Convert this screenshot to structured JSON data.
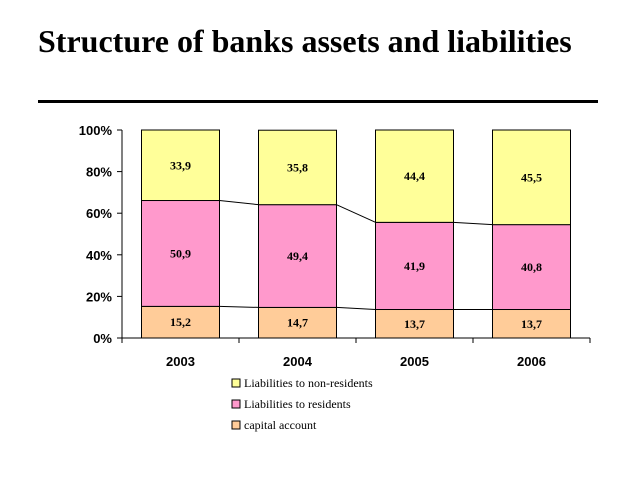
{
  "slide": {
    "title": "Structure of banks assets and liabilities"
  },
  "chart_data": {
    "type": "bar",
    "stacked": true,
    "normalized_100": true,
    "categories": [
      "2003",
      "2004",
      "2005",
      "2006"
    ],
    "series": [
      {
        "name": "capital account",
        "values": [
          15.2,
          14.7,
          13.7,
          13.7
        ],
        "labels": [
          "15,2",
          "14,7",
          "13,7",
          "13,7"
        ],
        "color": "#FFCC99"
      },
      {
        "name": "Liabilities to residents",
        "values": [
          50.9,
          49.4,
          41.9,
          40.8
        ],
        "labels": [
          "50,9",
          "49,4",
          "41,9",
          "40,8"
        ],
        "color": "#FF99CC"
      },
      {
        "name": "Liabilities to non-residents",
        "values": [
          33.9,
          35.8,
          44.4,
          45.5
        ],
        "labels": [
          "33,9",
          "35,8",
          "44,4",
          "45,5"
        ],
        "color": "#FFFF99"
      }
    ],
    "yticks": [
      "0%",
      "20%",
      "40%",
      "60%",
      "80%",
      "100%"
    ],
    "ylim": [
      0,
      100
    ],
    "series_lines": true,
    "legend_position": "bottom",
    "legend_order": [
      "Liabilities to non-residents",
      "Liabilities to residents",
      "capital account"
    ],
    "grid": false
  }
}
